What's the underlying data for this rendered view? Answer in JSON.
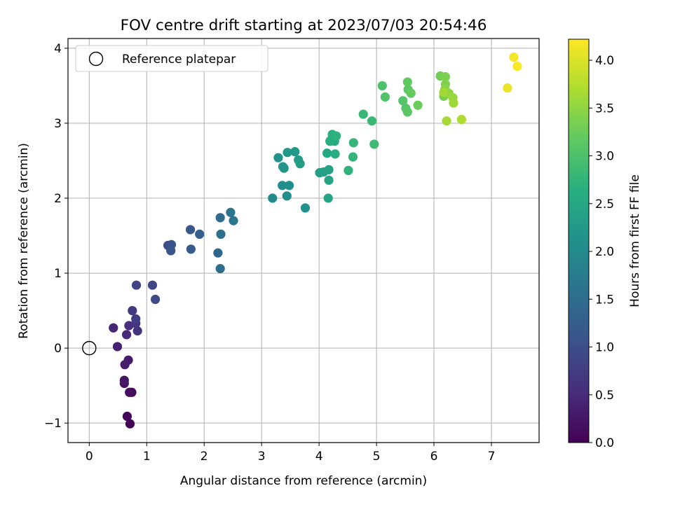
{
  "chart_data": {
    "type": "scatter",
    "title": "FOV centre drift starting at 2023/07/03 20:54:46",
    "xlabel": "Angular distance from reference (arcmin)",
    "ylabel": "Rotation from reference (arcmin)",
    "xlim": [
      -0.37,
      7.83
    ],
    "ylim": [
      -1.26,
      4.13
    ],
    "xticks": [
      0,
      1,
      2,
      3,
      4,
      5,
      6,
      7
    ],
    "xtick_labels": [
      "0",
      "1",
      "2",
      "3",
      "4",
      "5",
      "6",
      "7"
    ],
    "yticks": [
      -1,
      0,
      1,
      2,
      3,
      4
    ],
    "ytick_labels": [
      "−1",
      "0",
      "1",
      "2",
      "3",
      "4"
    ],
    "grid": true,
    "legend": {
      "position": "top-left",
      "entries": [
        "Reference platepar"
      ]
    },
    "reference": {
      "x": 0,
      "y": 0,
      "marker": "open-circle"
    },
    "colorbar": {
      "label": "Hours from first FF file",
      "colormap": "viridis",
      "range": [
        0.0,
        4.22
      ],
      "ticks": [
        0.0,
        0.5,
        1.0,
        1.5,
        2.0,
        2.5,
        3.0,
        3.5,
        4.0
      ],
      "tick_labels": [
        "0.0",
        "0.5",
        "1.0",
        "1.5",
        "2.0",
        "2.5",
        "3.0",
        "3.5",
        "4.0"
      ]
    },
    "series": [
      {
        "x": [
          0.71,
          0.66,
          0.74,
          0.7,
          0.61,
          0.61,
          0.68,
          0.62,
          0.49,
          0.42,
          0.65,
          0.69,
          0.84,
          0.81,
          0.75,
          0.81,
          0.82,
          1.1,
          1.15,
          1.37,
          1.43,
          1.42,
          1.76,
          1.77,
          1.92,
          2.24,
          2.28,
          2.28,
          2.29,
          2.46,
          2.51,
          3.19,
          3.36,
          3.44,
          3.48,
          3.76,
          3.29,
          3.39,
          3.37,
          3.45,
          3.58,
          3.64,
          3.67,
          4.01,
          4.08,
          4.17,
          4.17,
          4.16,
          4.14,
          4.19,
          4.27,
          4.28,
          4.2,
          4.23,
          4.3,
          4.51,
          4.59,
          4.6,
          4.77,
          4.92,
          4.96,
          5.1,
          5.15,
          5.46,
          5.51,
          5.54,
          5.55,
          5.54,
          5.6,
          5.72,
          6.11,
          6.17,
          6.2,
          6.2,
          6.19,
          6.26,
          6.33,
          6.34,
          6.17,
          6.22,
          6.48,
          7.28,
          7.39,
          7.45
        ],
        "y": [
          -1.01,
          -0.91,
          -0.59,
          -0.59,
          -0.47,
          -0.43,
          -0.16,
          -0.22,
          0.02,
          0.27,
          0.18,
          0.3,
          0.23,
          0.33,
          0.5,
          0.39,
          0.84,
          0.84,
          0.65,
          1.37,
          1.38,
          1.3,
          1.58,
          1.32,
          1.52,
          1.27,
          1.74,
          1.06,
          1.52,
          1.81,
          1.7,
          2.0,
          2.17,
          2.03,
          2.17,
          1.87,
          2.54,
          2.4,
          2.42,
          2.61,
          2.62,
          2.51,
          2.46,
          2.34,
          2.35,
          2.38,
          2.24,
          2.0,
          2.6,
          2.76,
          2.76,
          2.59,
          2.77,
          2.85,
          2.83,
          2.37,
          2.55,
          2.74,
          3.12,
          3.03,
          2.72,
          3.5,
          3.35,
          3.3,
          3.2,
          3.15,
          3.45,
          3.55,
          3.4,
          3.24,
          3.63,
          3.36,
          3.62,
          3.52,
          3.45,
          3.4,
          3.34,
          3.27,
          3.41,
          3.03,
          3.05,
          3.47,
          3.88,
          3.76
        ],
        "hours": [
          0.0,
          0.05,
          0.1,
          0.15,
          0.2,
          0.25,
          0.3,
          0.35,
          0.4,
          0.45,
          0.5,
          0.55,
          0.6,
          0.65,
          0.7,
          0.75,
          0.85,
          0.9,
          0.95,
          1.0,
          1.05,
          1.1,
          1.15,
          1.2,
          1.25,
          1.4,
          1.45,
          1.5,
          1.55,
          1.6,
          1.65,
          2.0,
          2.03,
          2.06,
          2.09,
          2.12,
          2.15,
          2.18,
          2.21,
          2.24,
          2.27,
          2.3,
          2.33,
          2.36,
          2.39,
          2.42,
          2.45,
          2.48,
          2.51,
          2.54,
          2.57,
          2.6,
          2.63,
          2.66,
          2.69,
          2.72,
          2.75,
          2.78,
          2.81,
          2.84,
          2.87,
          3.0,
          3.03,
          3.06,
          3.09,
          3.12,
          3.15,
          3.18,
          3.21,
          3.24,
          3.3,
          3.33,
          3.36,
          3.4,
          3.45,
          3.5,
          3.55,
          3.6,
          3.62,
          3.65,
          3.7,
          4.1,
          4.15,
          4.2
        ]
      }
    ]
  }
}
